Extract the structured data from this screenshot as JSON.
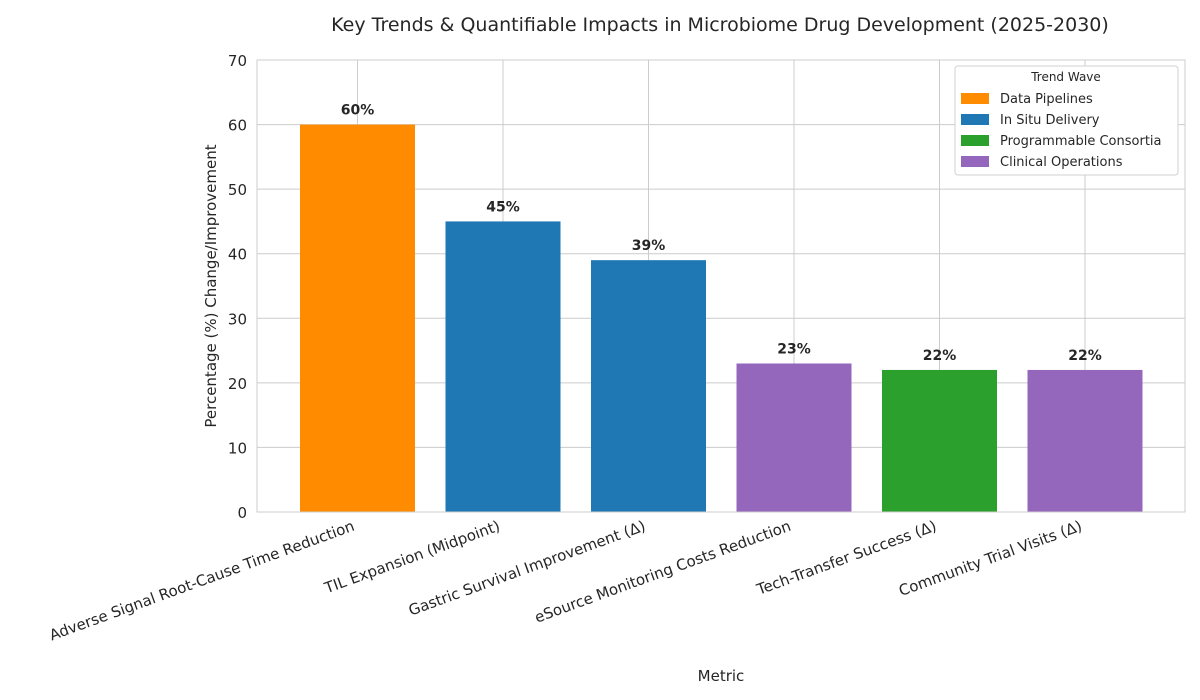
{
  "chart_data": {
    "type": "bar",
    "title": "Key Trends & Quantifiable Impacts in Microbiome Drug Development (2025-2030)",
    "xlabel": "Metric",
    "ylabel": "Percentage (%) Change/Improvement",
    "ylim": [
      0,
      70
    ],
    "yticks": [
      0,
      10,
      20,
      30,
      40,
      50,
      60,
      70
    ],
    "grid": true,
    "categories": [
      "Adverse Signal Root-Cause Time Reduction",
      "TIL Expansion (Midpoint)",
      "Gastric Survival Improvement (Δ)",
      "eSource Monitoring Costs Reduction",
      "Tech-Transfer Success (Δ)",
      "Community Trial Visits (Δ)"
    ],
    "values": [
      60,
      45,
      39,
      23,
      22,
      22
    ],
    "data_labels": [
      "60%",
      "45%",
      "39%",
      "23%",
      "22%",
      "22%"
    ],
    "bar_groups": [
      "Data Pipelines",
      "In Situ Delivery",
      "In Situ Delivery",
      "Clinical Operations",
      "Programmable Consortia",
      "Clinical Operations"
    ],
    "legend": {
      "title": "Trend Wave",
      "position": "top-right",
      "entries": [
        {
          "label": "Data Pipelines",
          "color": "#ff8c00"
        },
        {
          "label": "In Situ Delivery",
          "color": "#1f77b4"
        },
        {
          "label": "Programmable Consortia",
          "color": "#2ca02c"
        },
        {
          "label": "Clinical Operations",
          "color": "#9467bd"
        }
      ]
    }
  }
}
